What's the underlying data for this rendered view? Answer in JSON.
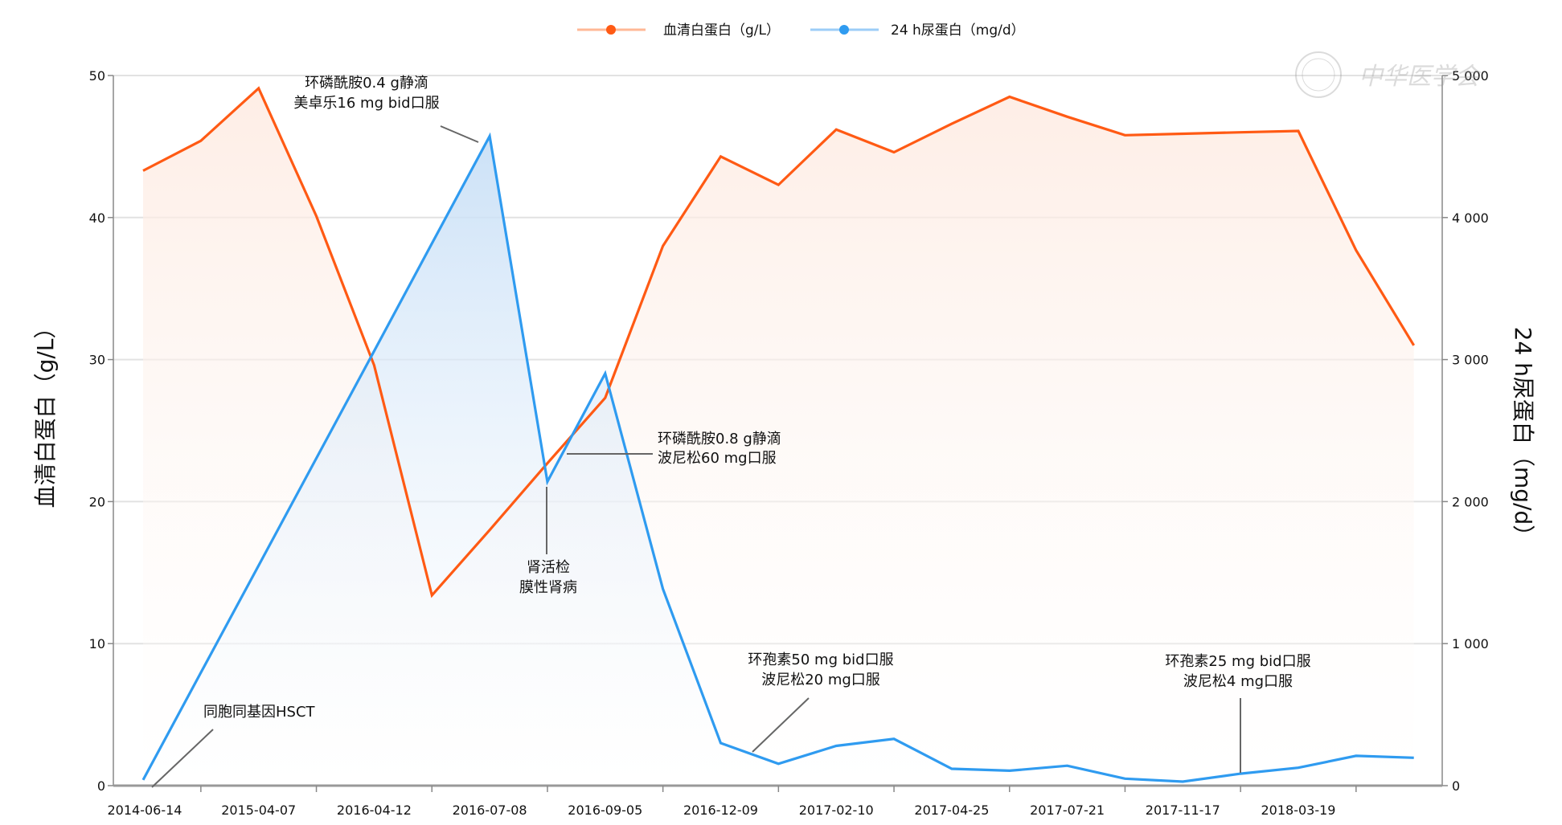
{
  "chart_data": {
    "type": "line",
    "title": "",
    "legend": {
      "placement": "top-center"
    },
    "categories": [
      "2014-06-14",
      "",
      "2015-04-07",
      "",
      "2016-04-12",
      "",
      "2016-07-08",
      "",
      "2016-09-05",
      "",
      "2016-12-09",
      "",
      "2017-02-10",
      "",
      "2017-04-25",
      "",
      "2017-07-21",
      "",
      "2017-11-17",
      "",
      "2018-03-19",
      "",
      ""
    ],
    "series": [
      {
        "name": "血清白蛋白（g/L）",
        "axis": "left",
        "color": "#ff5a14",
        "values": [
          43.3,
          45.4,
          49.1,
          40.1,
          29.6,
          13.4,
          18.0,
          22.7,
          27.3,
          38.0,
          44.3,
          42.3,
          46.2,
          44.6,
          46.6,
          48.5,
          47.1,
          45.8,
          45.9,
          46.0,
          46.1,
          37.7,
          31.0
        ]
      },
      {
        "name": "24 h尿蛋白（mg/d）",
        "axis": "right",
        "color": "#2f9bf0",
        "values": [
          40,
          795,
          1550,
          2305,
          3060,
          3818,
          4573,
          2140,
          2902,
          1385,
          300,
          154,
          280,
          329,
          119,
          105,
          140,
          49,
          28,
          84,
          126,
          210,
          196
        ]
      }
    ],
    "ylabel_left": "血清白蛋白（g/L）",
    "ylabel_right": "24 h尿蛋白（mg/d）",
    "ylim_left": [
      0,
      50
    ],
    "ylim_right": [
      0,
      5000
    ],
    "yticks_left": [
      "0",
      "10",
      "20",
      "30",
      "40",
      "50"
    ],
    "yticks_right": [
      "0",
      "1 000",
      "2 000",
      "3 000",
      "4 000",
      "5 000"
    ],
    "grid": true,
    "annotations": [
      {
        "lines": [
          "环磷酰胺0.4 g静滴",
          "美卓乐16 mg bid口服"
        ],
        "target_index": 6
      },
      {
        "lines": [
          "环磷酰胺0.8 g静滴",
          "波尼松60 mg口服"
        ],
        "target_index": 7
      },
      {
        "lines": [
          "肾活检",
          "膜性肾病"
        ],
        "target_index": 7
      },
      {
        "lines": [
          "环孢素50 mg bid口服",
          "波尼松20 mg口服"
        ],
        "target_index": 11
      },
      {
        "lines": [
          "环孢素25 mg bid口服",
          "波尼松4 mg口服"
        ],
        "target_index": 19
      },
      {
        "lines": [
          "同胞同基因HSCT"
        ],
        "target_index": 0
      }
    ]
  },
  "watermark": "中华医学会"
}
